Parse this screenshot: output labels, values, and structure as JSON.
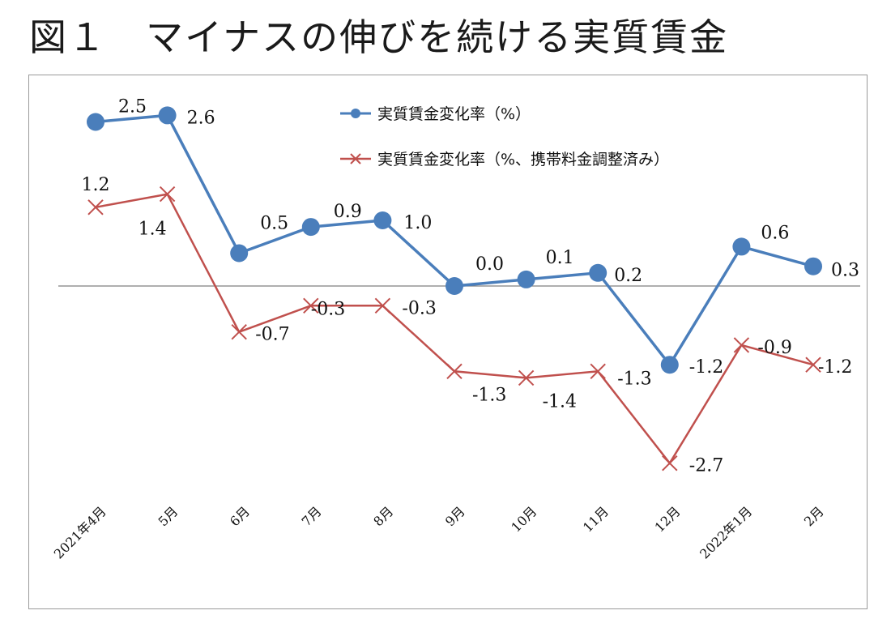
{
  "title": "図１　マイナスの伸びを続ける実質賃金",
  "colors": {
    "series1": "#4a7ebb",
    "series2": "#c0504d",
    "axis": "#7f7f7f"
  },
  "chart_data": {
    "type": "line",
    "categories": [
      "2021年4月",
      "5月",
      "6月",
      "7月",
      "8月",
      "9月",
      "10月",
      "11月",
      "12月",
      "2022年1月",
      "2月"
    ],
    "series": [
      {
        "name": "実質賃金変化率（%）",
        "marker": "circle",
        "values": [
          2.5,
          2.6,
          0.5,
          0.9,
          1.0,
          0.0,
          0.1,
          0.2,
          -1.2,
          0.6,
          0.3
        ],
        "labels": [
          "2.5",
          "2.6",
          "0.5",
          "0.9",
          "1.0",
          "0.0",
          "0.1",
          "0.2",
          "-1.2",
          "0.6",
          "0.3"
        ]
      },
      {
        "name": "実質賃金変化率（%、携帯料金調整済み）",
        "marker": "x",
        "values": [
          1.2,
          1.4,
          -0.7,
          -0.3,
          -0.3,
          -1.3,
          -1.4,
          -1.3,
          -2.7,
          -0.9,
          -1.2
        ],
        "labels": [
          "1.2",
          "1.4",
          "-0.7",
          "-0.3",
          "-0.3",
          "-1.3",
          "-1.4",
          "-1.3",
          "-2.7",
          "-0.9",
          "-1.2"
        ]
      }
    ],
    "xlabel": "",
    "ylabel": "",
    "ylim": [
      -3.2,
      2.9
    ],
    "grid": false,
    "zero_line": true,
    "legend": "top-center"
  }
}
